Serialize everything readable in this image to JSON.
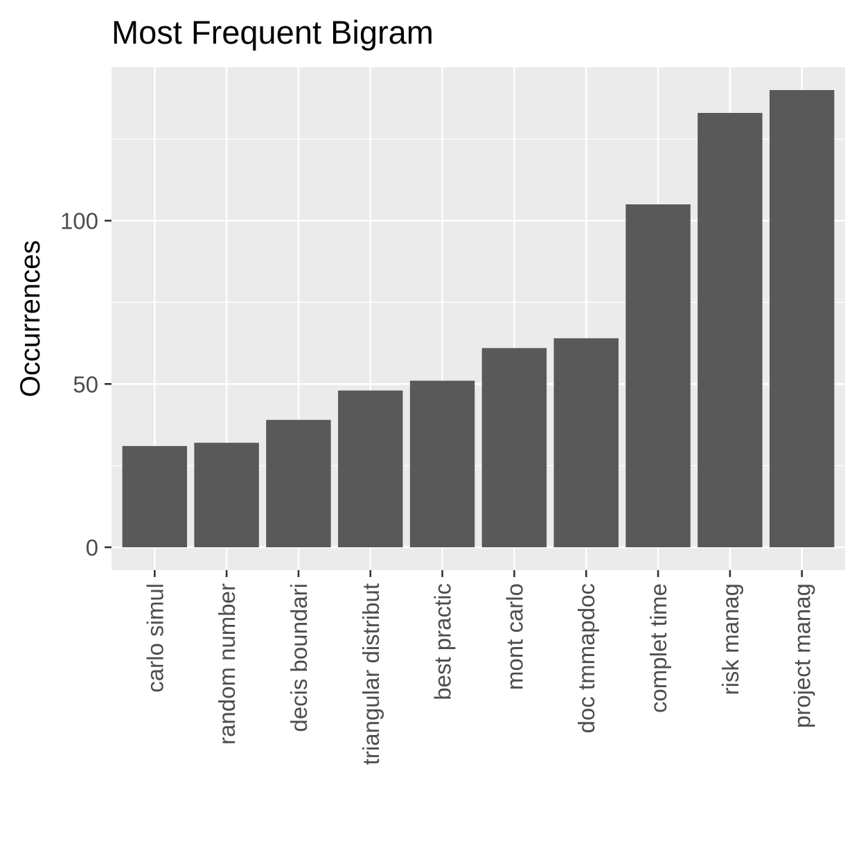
{
  "chart_data": {
    "type": "bar",
    "title": "Most Frequent Bigram",
    "xlabel": "",
    "ylabel": "Occurrences",
    "categories": [
      "carlo simul",
      "random number",
      "decis boundari",
      "triangular distribut",
      "best practic",
      "mont carlo",
      "doc tmmapdoc",
      "complet time",
      "risk manag",
      "project manag"
    ],
    "values": [
      31,
      32,
      39,
      48,
      51,
      61,
      64,
      105,
      133,
      140
    ],
    "ylim": [
      -7,
      147
    ],
    "yticks": [
      0,
      50,
      100
    ],
    "ytick_labels": [
      "0",
      "50",
      "100"
    ],
    "grid": true,
    "legend": "none",
    "colors": {
      "bar": "#595959",
      "panel": "#ebebeb",
      "grid": "#ffffff",
      "tick_text": "#4d4d4d",
      "title_text": "#000000"
    }
  }
}
